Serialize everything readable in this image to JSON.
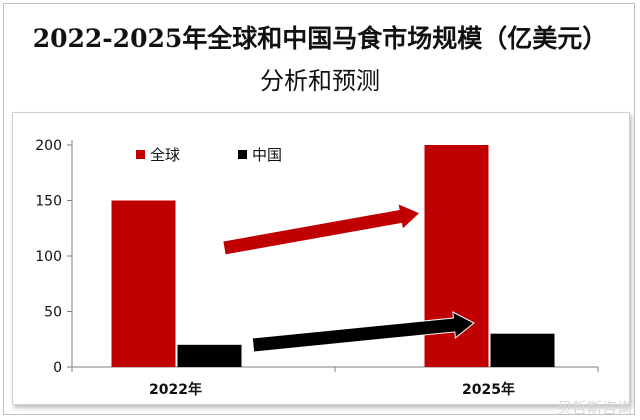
{
  "header": {
    "title_line1": "2022-2025年全球和中国马食市场规模（亿美元）",
    "title_line2": "分析和预测"
  },
  "watermark": "贝哲斯咨询",
  "colors": {
    "global": "#c00000",
    "china": "#000000",
    "axis": "#7f7f7f"
  },
  "chart_data": {
    "type": "bar",
    "title": "2022-2025年全球和中国马食市场规模（亿美元）分析和预测",
    "categories": [
      "2022年",
      "2025年"
    ],
    "series": [
      {
        "name": "全球",
        "values": [
          150,
          200
        ]
      },
      {
        "name": "中国",
        "values": [
          20,
          30
        ]
      }
    ],
    "ylim": [
      0,
      200
    ],
    "yticks": [
      0,
      50,
      100,
      150,
      200
    ],
    "xlabel": "",
    "ylabel": "",
    "legend": "top-left",
    "grid": false,
    "annotations": [
      "red growth arrow for 全球",
      "black growth arrow for 中国"
    ]
  }
}
